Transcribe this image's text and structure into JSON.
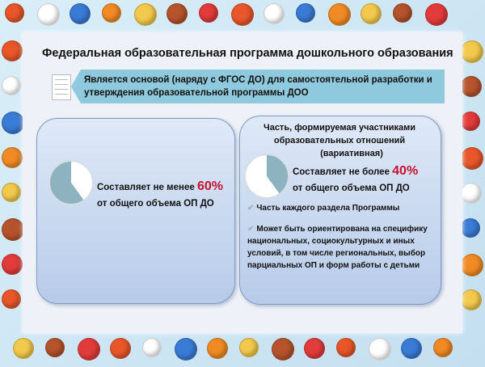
{
  "title": "Федеральная образовательная программа дошкольного образования",
  "banner": {
    "line1": "Является основой (наряду с ФГОС ДО) для самостоятельной разработки и",
    "line2": "утверждения образовательной программы ДОО"
  },
  "left_box": {
    "text_prefix": "Составляет не менее ",
    "percent": "60%",
    "text_line2": "от общего объема ОП ДО",
    "pie_share": 0.6
  },
  "right_box": {
    "heading": [
      "Часть, формируемая участниками",
      "образовательных отношений",
      "(вариативная)"
    ],
    "text_prefix": "Составляет не более ",
    "percent": "40%",
    "text_line2": "от общего объема ОП ДО",
    "pie_share": 0.4,
    "items": [
      "Часть каждого раздела Программы",
      "Может быть ориентирована на специфику национальных, социокультурных и иных условий, в том числе региональных, выбор парциальных ОП и форм работы с детьми"
    ]
  },
  "colors": {
    "accent": "#c8102e",
    "banner": "#8fc9dd",
    "pie": "#8db2c0"
  }
}
